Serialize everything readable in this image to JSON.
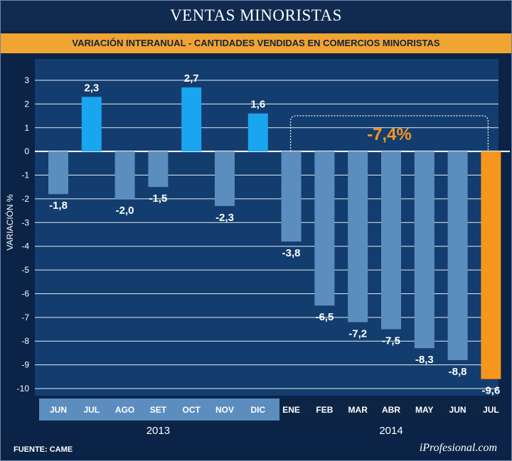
{
  "title": "VENTAS MINORISTAS",
  "subtitle": "VARIACIÓN INTERANUAL - CANTIDADES VENDIDAS EN COMERCIOS MINORISTAS",
  "source": "FUENTE: CAME",
  "brand": "iProfesional.com",
  "colors": {
    "background": "#0b2346",
    "plot_background": "#123d6e",
    "negative_2013": "#5b8dbf",
    "positive": "#19a5f0",
    "negative_2014": "#5b8dbf",
    "highlight": "#f7961e",
    "subtitle_bar": "#f0a432",
    "axis_label_band_2013": "#5b8dbf",
    "axis_label_band_2014": "#0d2445"
  },
  "chart_data": {
    "type": "bar",
    "ylabel": "VARIACIÓN %",
    "ylim": [
      -10,
      3
    ],
    "yticks": [
      "3",
      "2",
      "1",
      "0",
      "-1",
      "-2",
      "-3",
      "-4",
      "-5",
      "-6",
      "-7",
      "-8",
      "-9",
      "-10"
    ],
    "grid": true,
    "categories": [
      "JUN",
      "JUL",
      "AGO",
      "SET",
      "OCT",
      "NOV",
      "DIC",
      "ENE",
      "FEB",
      "MAR",
      "ABR",
      "MAY",
      "JUN",
      "JUL"
    ],
    "years": [
      {
        "label": "2013",
        "span": 7
      },
      {
        "label": "2014",
        "span": 7
      }
    ],
    "values": [
      -1.8,
      2.3,
      -2.0,
      -1.5,
      2.7,
      -2.3,
      1.6,
      -3.8,
      -6.5,
      -7.2,
      -7.5,
      -8.3,
      -8.8,
      -9.6
    ],
    "value_labels": [
      "-1,8",
      "2,3",
      "-2,0",
      "-1,5",
      "2,7",
      "-2,3",
      "1,6",
      "-3,8",
      "-6,5",
      "-7,2",
      "-7,5",
      "-8,3",
      "-8,8",
      "-9,6"
    ],
    "highlight_index": 13,
    "annotation": {
      "text": "-7,4%",
      "from_index": 7,
      "to_index": 13
    }
  }
}
